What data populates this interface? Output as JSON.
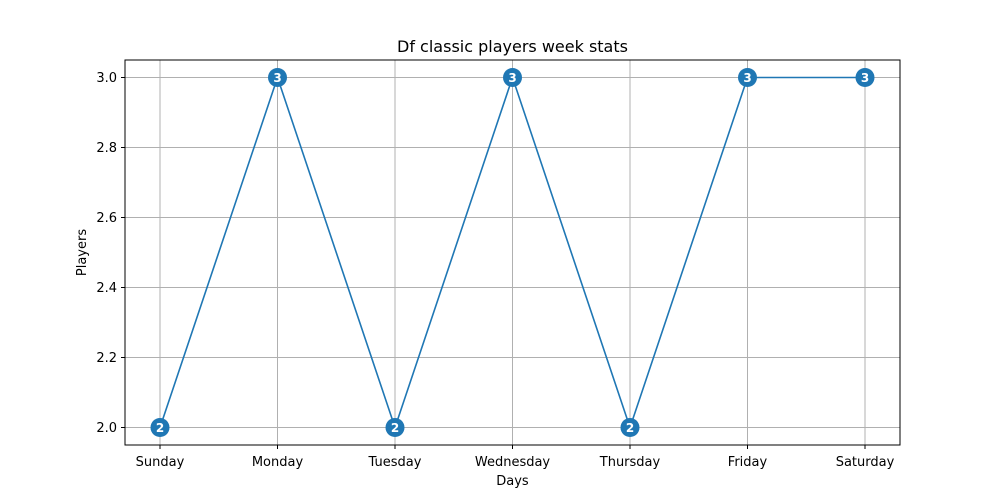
{
  "chart_data": {
    "type": "line",
    "title": "Df classic players week stats",
    "xlabel": "Days",
    "ylabel": "Players",
    "categories": [
      "Sunday",
      "Monday",
      "Tuesday",
      "Wednesday",
      "Thursday",
      "Friday",
      "Saturday"
    ],
    "series": [
      {
        "values": [
          2,
          3,
          2,
          3,
          2,
          3,
          3
        ]
      }
    ],
    "point_labels": [
      "2",
      "3",
      "2",
      "3",
      "2",
      "3",
      "3"
    ],
    "ylim": [
      1.95,
      3.05
    ],
    "yticks": [
      2.0,
      2.2,
      2.4,
      2.6,
      2.8,
      3.0
    ],
    "ytick_labels": [
      "2.0",
      "2.2",
      "2.4",
      "2.6",
      "2.8",
      "3.0"
    ],
    "grid": true,
    "colors": {
      "line": "#1f77b4",
      "marker": "#1f77b4",
      "grid": "#b0b0b0"
    }
  }
}
